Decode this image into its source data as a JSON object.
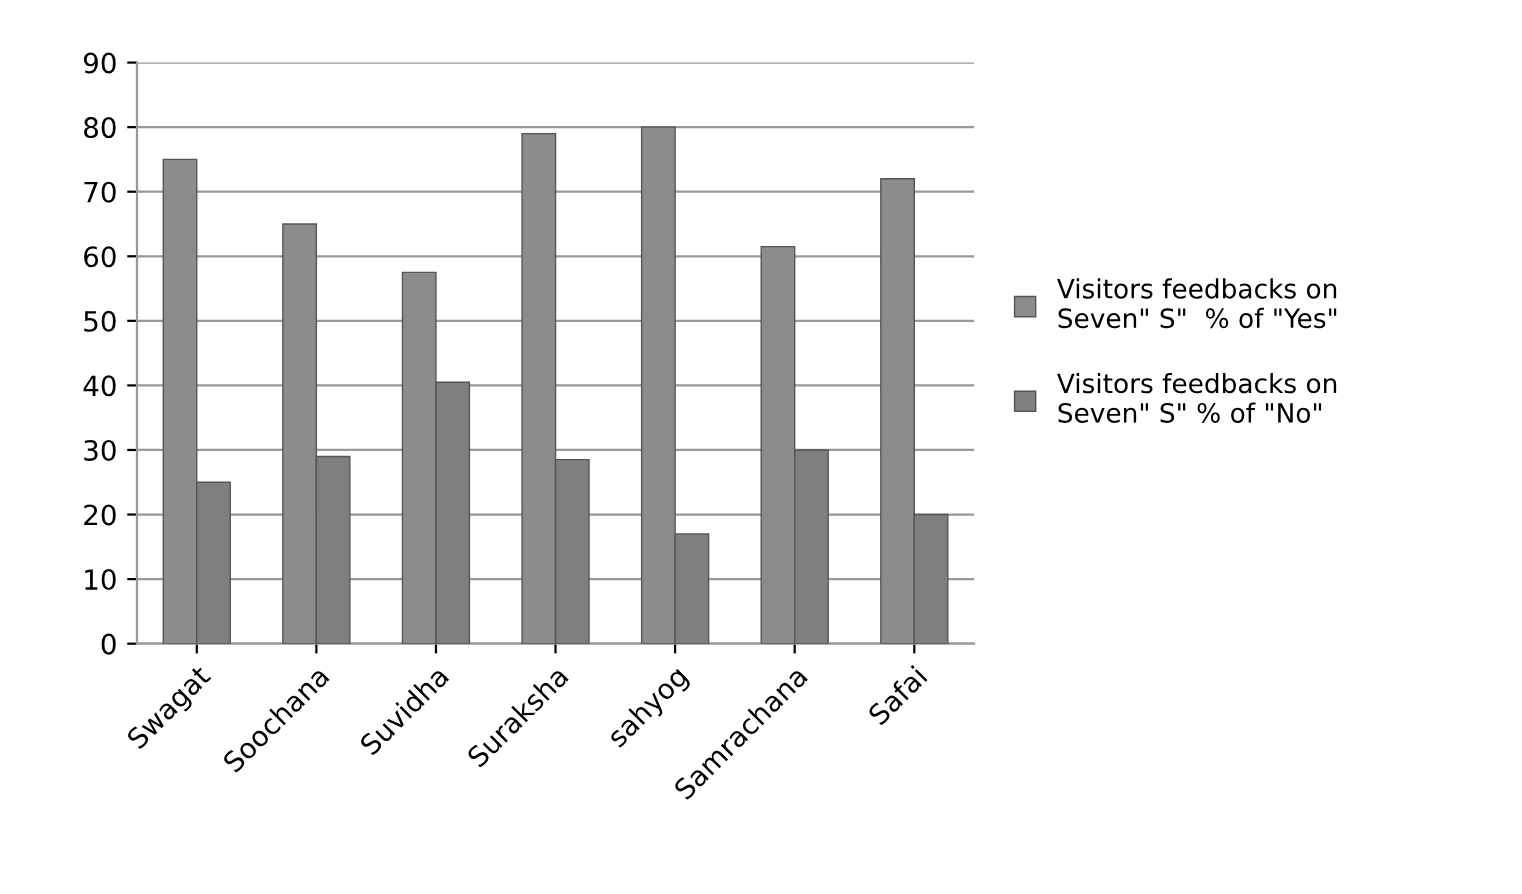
{
  "chart_data": {
    "type": "bar",
    "categories": [
      "Swagat",
      "Soochana",
      "Suvidha",
      "Suraksha",
      "sahyog",
      "Samrachana",
      "Safai"
    ],
    "series": [
      {
        "name": "Visitors feedbacks on Seven\" S\"  % of \"Yes\"",
        "color": "#8c8c8c",
        "values": [
          75,
          65,
          57.5,
          79,
          80,
          61.5,
          72
        ]
      },
      {
        "name": "Visitors feedbacks on Seven\" S\" % of \"No\"",
        "color": "#7f7f7f",
        "values": [
          25,
          29,
          40.5,
          28.5,
          17,
          30,
          20
        ]
      }
    ],
    "ylim": [
      0,
      90
    ],
    "yticks": [
      0,
      10,
      20,
      30,
      40,
      50,
      60,
      70,
      80,
      90
    ],
    "grid": "y",
    "legend": "right"
  }
}
